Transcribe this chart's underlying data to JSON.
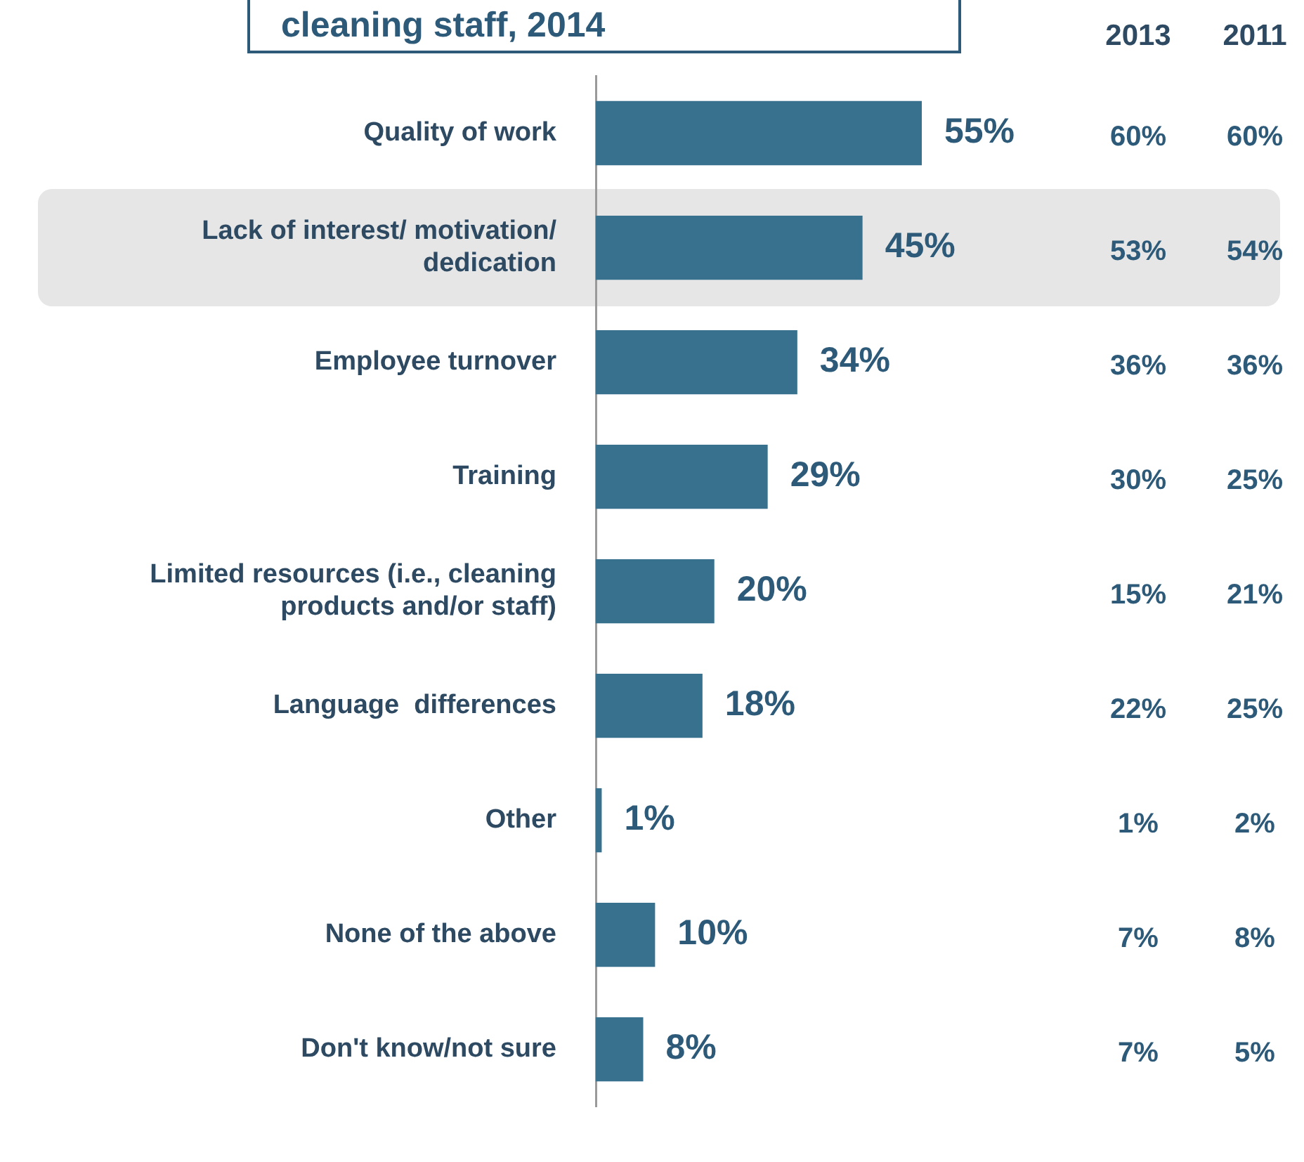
{
  "chart_data": {
    "type": "bar",
    "orientation": "horizontal",
    "title": "cleaning staff, 2014",
    "categories": [
      "Quality of work",
      "Lack of interest/ motivation/ dedication",
      "Employee turnover",
      "Training",
      "Limited resources (i.e., cleaning products and/or staff)",
      "Language  differences",
      "Other",
      "None of the above",
      "Don't know/not sure"
    ],
    "values": [
      55,
      45,
      34,
      29,
      20,
      18,
      1,
      10,
      8
    ],
    "color": "#37718e",
    "tick_labels": "y",
    "data_labels": true,
    "value_labels": [
      "55%",
      "45%",
      "34%",
      "29%",
      "20%",
      "18%",
      "1%",
      "10%",
      "8%"
    ],
    "bands": [
      {
        "axis": "y",
        "from": "Lack of interest/ motivation/ dedication",
        "to": "Lack of interest/ motivation/ dedication",
        "color": "#e6e6e6"
      }
    ],
    "annotations": [
      "2013",
      "60%",
      "53%",
      "36%",
      "30%",
      "15%",
      "22%",
      "1%",
      "7%",
      "7%",
      "2011",
      "60%",
      "54%",
      "36%",
      "25%",
      "21%",
      "25%",
      "2%",
      "8%",
      "5%"
    ]
  }
}
